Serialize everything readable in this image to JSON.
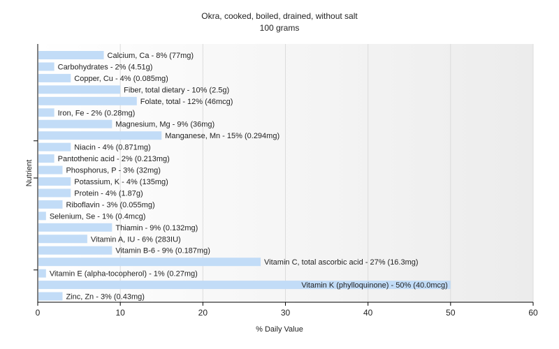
{
  "chart_data": {
    "type": "bar",
    "orientation": "horizontal",
    "title": "Okra, cooked, boiled, drained, without salt",
    "subtitle": "100 grams",
    "xlabel": "% Daily Value",
    "ylabel": "Nutrient",
    "xlim": [
      0,
      60
    ],
    "xticks": [
      0,
      10,
      20,
      30,
      40,
      50,
      60
    ],
    "grid": true,
    "bar_color": "#c2dcf7",
    "categories": [
      "Calcium, Ca",
      "Carbohydrates",
      "Copper, Cu",
      "Fiber, total dietary",
      "Folate, total",
      "Iron, Fe",
      "Magnesium, Mg",
      "Manganese, Mn",
      "Niacin",
      "Pantothenic acid",
      "Phosphorus, P",
      "Potassium, K",
      "Protein",
      "Riboflavin",
      "Selenium, Se",
      "Thiamin",
      "Vitamin A, IU",
      "Vitamin B-6",
      "Vitamin C, total ascorbic acid",
      "Vitamin E (alpha-tocopherol)",
      "Vitamin K (phylloquinone)",
      "Zinc, Zn"
    ],
    "values": [
      8,
      2,
      4,
      10,
      12,
      2,
      9,
      15,
      4,
      2,
      3,
      4,
      4,
      3,
      1,
      9,
      6,
      9,
      27,
      1,
      50,
      3
    ],
    "labels": [
      "Calcium, Ca - 8% (77mg)",
      "Carbohydrates - 2% (4.51g)",
      "Copper, Cu - 4% (0.085mg)",
      "Fiber, total dietary - 10% (2.5g)",
      "Folate, total - 12% (46mcg)",
      "Iron, Fe - 2% (0.28mg)",
      "Magnesium, Mg - 9% (36mg)",
      "Manganese, Mn - 15% (0.294mg)",
      "Niacin - 4% (0.871mg)",
      "Pantothenic acid - 2% (0.213mg)",
      "Phosphorus, P - 3% (32mg)",
      "Potassium, K - 4% (135mg)",
      "Protein - 4% (1.87g)",
      "Riboflavin - 3% (0.055mg)",
      "Selenium, Se - 1% (0.4mcg)",
      "Thiamin - 9% (0.132mg)",
      "Vitamin A, IU - 6% (283IU)",
      "Vitamin B-6 - 9% (0.187mg)",
      "Vitamin C, total ascorbic acid - 27% (16.3mg)",
      "Vitamin E (alpha-tocopherol) - 1% (0.27mg)",
      "Vitamin K (phylloquinone) - 50% (40.0mcg)",
      "Zinc, Zn - 3% (0.43mg)"
    ]
  }
}
